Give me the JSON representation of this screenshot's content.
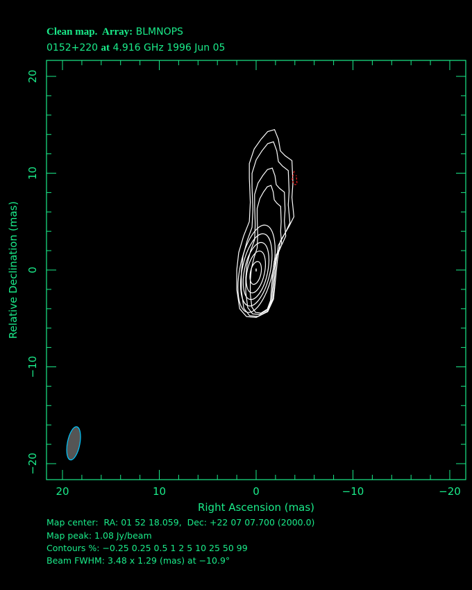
{
  "header": {
    "title_prefix": "Clean map.  Array:",
    "array": "BLMNOPS",
    "source": "0152+220",
    "at_word": "at",
    "obs": "4.916 GHz 1996 Jun 05"
  },
  "chart_data": {
    "type": "contour",
    "xlabel": "Right Ascension   (mas)",
    "ylabel": "Relative Declination   (mas)",
    "xlim": [
      21.65,
      -21.65
    ],
    "ylim": [
      -21.65,
      21.65
    ],
    "x_ticks": [
      "20",
      "10",
      "0",
      "−10",
      "−20"
    ],
    "x_tick_values": [
      20,
      10,
      0,
      -10,
      -20
    ],
    "y_ticks": [
      "20",
      "10",
      "0",
      "−10",
      "−20"
    ],
    "y_tick_values": [
      20,
      10,
      0,
      -10,
      -20
    ],
    "minor_tick_step": 2,
    "contour_levels_percent": [
      -0.25,
      0.25,
      0.5,
      1,
      2,
      5,
      10,
      25,
      50,
      99
    ],
    "peak_position": [
      0,
      0
    ],
    "negative_contour_position": [
      -4,
      9.5
    ],
    "beam": {
      "major": 3.48,
      "minor": 1.29,
      "pa_deg": -10.9,
      "position": [
        18.85,
        -17.9
      ]
    },
    "colors": {
      "axes": "#1aeb8a",
      "contours": "#ffffff",
      "negative": "#ff2020",
      "beam_fill": "#555555",
      "beam_edge": "#00c8ff"
    }
  },
  "footer": {
    "map_center": "Map center:  RA: 01 52 18.059,  Dec: +22 07 07.700 (2000.0)",
    "map_peak": "Map peak: 1.08 Jy/beam",
    "contours": "Contours %: −0.25 0.25 0.5 1 2 5 10 25 50 99",
    "beam": "Beam FWHM: 3.48 x 1.29 (mas) at −10.9°"
  }
}
